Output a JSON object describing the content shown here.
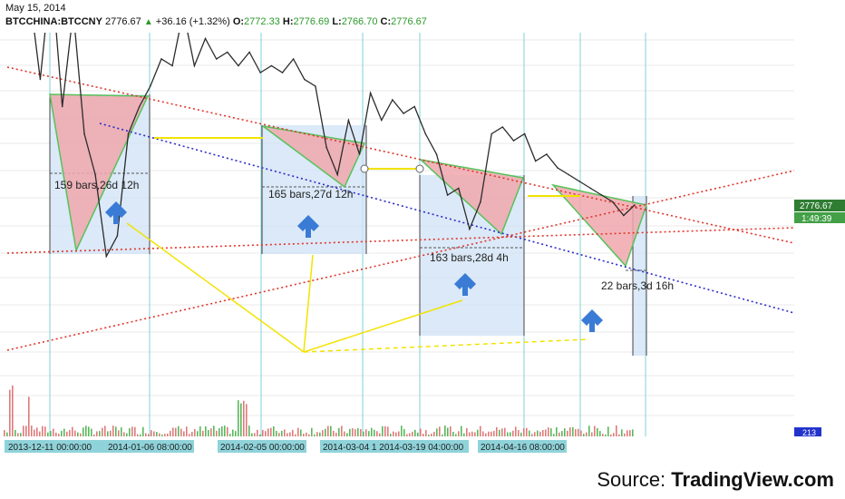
{
  "header": {
    "date": "May 15, 2014",
    "symbol": "BTCCHINA:BTCCNY",
    "last": "2776.67",
    "change": "+36.16 (+1.32%)",
    "open_label": "O:",
    "open": "2772.33",
    "high_label": "H:",
    "high": "2776.69",
    "low_label": "L:",
    "low": "2766.70",
    "close_label": "C:",
    "close": "2776.67"
  },
  "price_tag": "2776.67",
  "countdown_tag": "1:49:39",
  "volume_tag": "213",
  "x_ticks": [
    "2013-12-11 00:00:00",
    "2014-01-06 08:00:00",
    "2014-02-05 00:00:00",
    "2014-03-04 1 2014-03-19 04:00:00",
    "2014-04-16 08:00:00"
  ],
  "annotations": [
    "159 bars,26d 12h",
    "165 bars,27d 12h",
    "163 bars,28d 4h",
    "22 bars,3d 16h"
  ],
  "source": {
    "label": "Source: ",
    "brand": "TradingView.com"
  },
  "colors": {
    "price": "#2b2b2b",
    "volume": "#58b85a",
    "triangle": "#f0a7ad",
    "box": "#cfe1f6",
    "downtrend": "#e0362c",
    "support": "#2d2dc8",
    "yellow": "#f2e300",
    "arrow": "#3a7bd5"
  },
  "chart_data": {
    "type": "line",
    "title": "",
    "xlabel": "",
    "ylabel": "",
    "series": [
      {
        "values": [
          5000,
          4850,
          4350,
          3700,
          4500,
          3500,
          4200,
          3300,
          3000,
          2400,
          2550,
          3300,
          3500,
          3650,
          3850,
          3800,
          4200,
          3800,
          4000,
          3850,
          3900,
          3800,
          3900,
          3750,
          3800,
          3750,
          3850,
          3700,
          3650,
          3200,
          3000,
          3400,
          3150,
          3600,
          3400,
          3550,
          3450,
          3500,
          3300,
          3150,
          2850,
          2900,
          2600,
          2800,
          3300,
          3350,
          3250,
          3300,
          3100,
          3150,
          3050,
          3000,
          2950,
          2900,
          2850,
          2800,
          2700,
          2776.67
        ]
      }
    ],
    "grid": true,
    "legend": "none"
  }
}
